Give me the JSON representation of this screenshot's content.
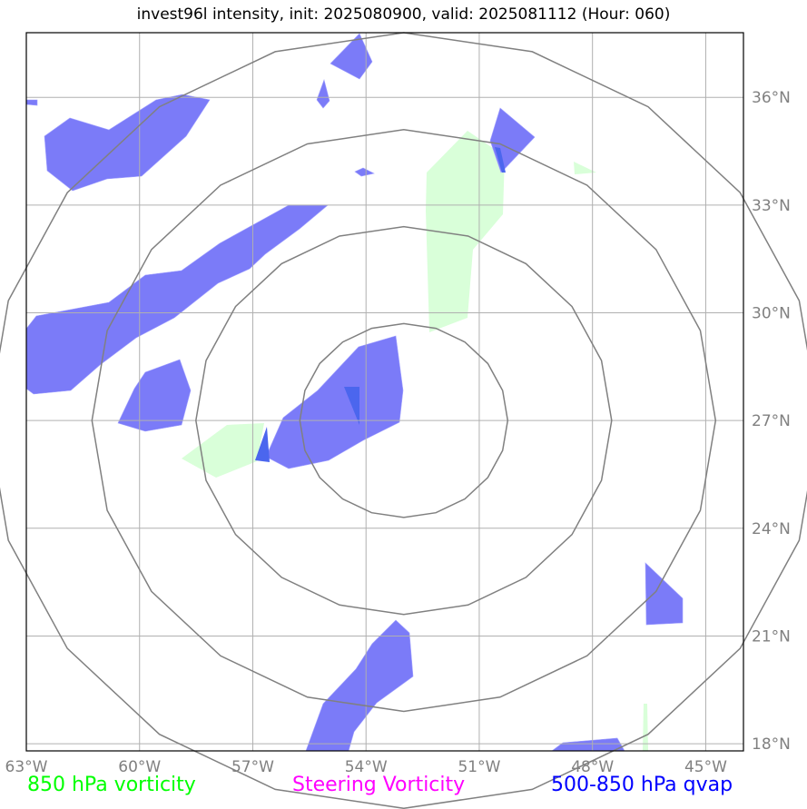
{
  "title": "invest96l intensity, init: 2025080900, valid: 2025081112 (Hour: 060)",
  "map": {
    "lon_range": [
      -63,
      -44
    ],
    "lat_range": [
      17.8,
      37.8
    ],
    "lon_ticks": [
      -63,
      -60,
      -57,
      -54,
      -51,
      -48,
      -45
    ],
    "lon_labels": [
      "63°W",
      "60°W",
      "57°W",
      "54°W",
      "51°W",
      "48°W",
      "45°W"
    ],
    "lat_ticks": [
      18,
      21,
      24,
      27,
      30,
      33,
      36
    ],
    "lat_labels": [
      "18°N",
      "21°N",
      "24°N",
      "27°N",
      "30°N",
      "33°N",
      "36°N"
    ],
    "ring_center": {
      "lon": -53.0,
      "lat": 27.0
    },
    "ring_radii_deg": [
      2.7,
      5.4,
      8.1,
      10.8
    ],
    "colors": {
      "vorticity_850": "#ccffcc",
      "steering_vorticity": "#ff00ff",
      "qvap_500_850": "#5555ff",
      "grid": "#b0b0b0",
      "rings": "#808080"
    }
  },
  "legend": {
    "vort850": {
      "label": "850 hPa vorticity",
      "color": "#00ff00"
    },
    "steering": {
      "label": "Steering Vorticity",
      "color": "#ff00ff"
    },
    "qvap": {
      "label": "500-850 hPa qvap",
      "color": "#0000ff"
    }
  }
}
